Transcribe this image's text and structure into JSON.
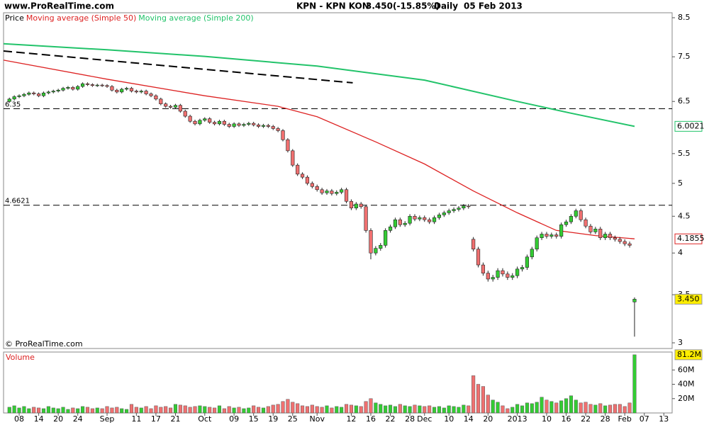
{
  "chart_data": {
    "type": "candlestick",
    "site": "www.ProRealTime.com",
    "symbol": "KPN - KPN KON",
    "last": "3.450",
    "change": "(-15.85%)",
    "period": "Daily",
    "date": "05 Feb 2013",
    "copyright": "© ProRealTime.com",
    "price_label": "Price",
    "log_scale": true,
    "xlim": [
      -1.2,
      135.7
    ],
    "ylim": [
      2.946,
      8.636
    ],
    "yticks": [
      8.5,
      7.5,
      6.5,
      5.5,
      5,
      4.5,
      4,
      3.5,
      3
    ],
    "xticks": [
      {
        "value": 2,
        "label": "08"
      },
      {
        "value": 6,
        "label": "14"
      },
      {
        "value": 10,
        "label": "20"
      },
      {
        "value": 14,
        "label": "24"
      },
      {
        "value": 20,
        "label": "Sep"
      },
      {
        "value": 26,
        "label": "11"
      },
      {
        "value": 30,
        "label": "17"
      },
      {
        "value": 34,
        "label": "21"
      },
      {
        "value": 40,
        "label": "Oct"
      },
      {
        "value": 46,
        "label": "09"
      },
      {
        "value": 50,
        "label": "15"
      },
      {
        "value": 54,
        "label": "19"
      },
      {
        "value": 58,
        "label": "25"
      },
      {
        "value": 63,
        "label": "Nov"
      },
      {
        "value": 70,
        "label": "12"
      },
      {
        "value": 74,
        "label": "16"
      },
      {
        "value": 78,
        "label": "22"
      },
      {
        "value": 82,
        "label": "28"
      },
      {
        "value": 85,
        "label": "Dec"
      },
      {
        "value": 90,
        "label": "10"
      },
      {
        "value": 94,
        "label": "14"
      },
      {
        "value": 98,
        "label": "20"
      },
      {
        "value": 104,
        "label": "2013"
      },
      {
        "value": 110,
        "label": "10"
      },
      {
        "value": 114,
        "label": "16"
      },
      {
        "value": 118,
        "label": "22"
      },
      {
        "value": 122,
        "label": "28"
      },
      {
        "value": 126,
        "label": "Feb"
      },
      {
        "value": 130,
        "label": "07"
      },
      {
        "value": 134,
        "label": "13"
      }
    ],
    "candles": {
      "up_color": "#33cc33",
      "down_color": "#f07070",
      "last_label": "3.450",
      "last_label_color": "#ffee00",
      "open": [
        6.5,
        6.55,
        6.6,
        6.62,
        6.65,
        6.68,
        6.66,
        6.62,
        6.68,
        6.7,
        6.72,
        6.74,
        6.78,
        6.8,
        6.76,
        6.82,
        6.88,
        6.86,
        6.84,
        6.85,
        6.84,
        6.82,
        6.74,
        6.7,
        6.76,
        6.78,
        6.72,
        6.7,
        6.72,
        6.66,
        6.62,
        6.55,
        6.45,
        6.4,
        6.38,
        6.42,
        6.3,
        6.2,
        6.1,
        6.05,
        6.12,
        6.15,
        6.08,
        6.05,
        6.1,
        6.04,
        6.0,
        6.05,
        6.02,
        6.04,
        6.06,
        6.03,
        6.0,
        6.02,
        6.0,
        5.96,
        5.92,
        5.75,
        5.55,
        5.3,
        5.15,
        5.1,
        5.0,
        4.95,
        4.9,
        4.85,
        4.88,
        4.84,
        4.86,
        4.9,
        4.72,
        4.62,
        4.68,
        4.64,
        4.3,
        4.0,
        4.06,
        4.1,
        4.3,
        4.35,
        4.45,
        4.38,
        4.4,
        4.5,
        4.46,
        4.48,
        4.45,
        4.42,
        4.48,
        4.52,
        4.55,
        4.58,
        4.6,
        4.62,
        4.65,
        4.18,
        4.05,
        3.85,
        3.75,
        3.68,
        3.7,
        3.78,
        3.74,
        3.7,
        3.72,
        3.8,
        3.82,
        3.95,
        4.05,
        4.2,
        4.25,
        4.22,
        4.24,
        4.22,
        4.38,
        4.42,
        4.5,
        4.58,
        4.45,
        4.36,
        4.28,
        4.32,
        4.2,
        4.25,
        4.2,
        4.18,
        4.15,
        4.12,
        3.42
      ],
      "high": [
        6.58,
        6.63,
        6.65,
        6.68,
        6.71,
        6.71,
        6.69,
        6.71,
        6.73,
        6.75,
        6.77,
        6.81,
        6.83,
        6.83,
        6.85,
        6.91,
        6.91,
        6.89,
        6.88,
        6.88,
        6.87,
        6.85,
        6.77,
        6.79,
        6.81,
        6.81,
        6.75,
        6.75,
        6.75,
        6.69,
        6.65,
        6.58,
        6.48,
        6.43,
        6.45,
        6.45,
        6.33,
        6.23,
        6.13,
        6.15,
        6.18,
        6.18,
        6.11,
        6.13,
        6.13,
        6.07,
        6.08,
        6.08,
        6.07,
        6.09,
        6.09,
        6.06,
        6.05,
        6.05,
        6.03,
        5.99,
        5.95,
        5.78,
        5.58,
        5.33,
        5.18,
        5.13,
        5.03,
        4.98,
        4.93,
        4.91,
        4.91,
        4.89,
        4.93,
        4.93,
        4.75,
        4.71,
        4.71,
        4.67,
        4.33,
        4.09,
        4.13,
        4.33,
        4.38,
        4.48,
        4.48,
        4.43,
        4.53,
        4.53,
        4.51,
        4.51,
        4.48,
        4.51,
        4.55,
        4.58,
        4.61,
        4.63,
        4.65,
        4.68,
        4.68,
        4.21,
        4.08,
        3.88,
        3.78,
        3.73,
        3.81,
        3.81,
        3.77,
        3.75,
        3.83,
        3.85,
        3.98,
        4.08,
        4.23,
        4.28,
        4.28,
        4.27,
        4.27,
        4.41,
        4.45,
        4.53,
        4.61,
        4.61,
        4.48,
        4.39,
        4.35,
        4.35,
        4.28,
        4.28,
        4.23,
        4.21,
        4.18,
        4.15,
        3.47
      ],
      "low": [
        6.47,
        6.52,
        6.57,
        6.59,
        6.62,
        6.63,
        6.59,
        6.59,
        6.65,
        6.67,
        6.69,
        6.71,
        6.75,
        6.73,
        6.73,
        6.79,
        6.83,
        6.81,
        6.81,
        6.81,
        6.79,
        6.71,
        6.67,
        6.67,
        6.73,
        6.69,
        6.67,
        6.67,
        6.63,
        6.59,
        6.52,
        6.42,
        6.37,
        6.35,
        6.35,
        6.27,
        6.17,
        6.07,
        6.02,
        6.02,
        6.09,
        6.05,
        6.02,
        6.02,
        6.01,
        5.97,
        5.97,
        5.99,
        5.99,
        6.01,
        6.0,
        5.97,
        5.97,
        5.97,
        5.93,
        5.89,
        5.72,
        5.52,
        5.27,
        5.12,
        5.07,
        4.97,
        4.92,
        4.87,
        4.82,
        4.82,
        4.81,
        4.81,
        4.83,
        4.69,
        4.59,
        4.59,
        4.61,
        4.27,
        3.92,
        3.97,
        4.03,
        4.07,
        4.27,
        4.32,
        4.35,
        4.35,
        4.37,
        4.43,
        4.43,
        4.42,
        4.39,
        4.39,
        4.45,
        4.49,
        4.52,
        4.55,
        4.57,
        4.59,
        4.61,
        4.02,
        3.82,
        3.72,
        3.65,
        3.65,
        3.67,
        3.71,
        3.67,
        3.67,
        3.69,
        3.77,
        3.79,
        3.92,
        4.02,
        4.17,
        4.19,
        4.19,
        4.19,
        4.19,
        4.35,
        4.39,
        4.47,
        4.42,
        4.33,
        4.25,
        4.25,
        4.17,
        4.17,
        4.17,
        4.15,
        4.12,
        4.09,
        4.07,
        3.06
      ],
      "close": [
        6.55,
        6.6,
        6.62,
        6.65,
        6.68,
        6.66,
        6.62,
        6.68,
        6.7,
        6.72,
        6.74,
        6.78,
        6.8,
        6.76,
        6.82,
        6.88,
        6.86,
        6.84,
        6.85,
        6.84,
        6.82,
        6.74,
        6.7,
        6.76,
        6.78,
        6.72,
        6.7,
        6.72,
        6.66,
        6.62,
        6.55,
        6.45,
        6.4,
        6.38,
        6.42,
        6.3,
        6.2,
        6.1,
        6.05,
        6.12,
        6.15,
        6.08,
        6.05,
        6.1,
        6.04,
        6.0,
        6.05,
        6.02,
        6.04,
        6.06,
        6.03,
        6.0,
        6.02,
        6.0,
        5.96,
        5.92,
        5.75,
        5.55,
        5.3,
        5.15,
        5.1,
        5.0,
        4.95,
        4.9,
        4.85,
        4.88,
        4.84,
        4.86,
        4.9,
        4.72,
        4.62,
        4.68,
        4.64,
        4.3,
        4.0,
        4.06,
        4.1,
        4.3,
        4.35,
        4.45,
        4.38,
        4.4,
        4.5,
        4.46,
        4.48,
        4.45,
        4.42,
        4.48,
        4.52,
        4.55,
        4.58,
        4.6,
        4.62,
        4.65,
        4.64,
        4.05,
        3.85,
        3.75,
        3.68,
        3.7,
        3.78,
        3.74,
        3.7,
        3.72,
        3.8,
        3.82,
        3.95,
        4.05,
        4.2,
        4.25,
        4.22,
        4.24,
        4.22,
        4.38,
        4.42,
        4.5,
        4.58,
        4.45,
        4.36,
        4.28,
        4.32,
        4.2,
        4.25,
        4.2,
        4.18,
        4.15,
        4.12,
        4.1,
        3.45
      ]
    },
    "series": [
      {
        "name": "Moving average (Simple 50)",
        "color": "#dd2222",
        "x": [
          -1.2,
          20,
          40,
          55,
          63,
          75,
          85,
          95,
          104,
          112,
          120,
          128
        ],
        "values": [
          7.42,
          6.98,
          6.62,
          6.4,
          6.19,
          5.71,
          5.32,
          4.88,
          4.55,
          4.3,
          4.23,
          4.1855
        ]
      },
      {
        "name": "Moving average (Simple 200)",
        "color": "#22c36a",
        "x": [
          -1.2,
          20,
          40,
          63,
          85,
          104,
          115,
          128
        ],
        "values": [
          7.82,
          7.67,
          7.51,
          7.28,
          6.96,
          6.5,
          6.26,
          6.0021
        ]
      }
    ],
    "trendline": {
      "color": "#000000",
      "x": [
        -1.2,
        70.3
      ],
      "values": [
        7.64,
        6.9
      ]
    },
    "hlines": [
      6.35,
      4.6621
    ],
    "volume": {
      "name": "Volume",
      "ylim": [
        0,
        85
      ],
      "yticks": [
        {
          "value": 20,
          "label": "20M"
        },
        {
          "value": 40,
          "label": "40M"
        },
        {
          "value": 60,
          "label": "60M"
        }
      ],
      "last_label": "81.2M",
      "values": [
        8,
        10,
        7,
        9,
        6,
        8,
        7,
        6,
        9,
        7,
        6,
        8,
        5,
        7,
        6,
        9,
        8,
        6,
        7,
        6,
        9,
        7,
        8,
        6,
        5,
        12,
        8,
        7,
        9,
        6,
        10,
        8,
        9,
        7,
        12,
        11,
        10,
        8,
        9,
        10,
        9,
        8,
        7,
        10,
        6,
        9,
        7,
        8,
        6,
        7,
        10,
        8,
        7,
        9,
        11,
        12,
        16,
        19,
        15,
        13,
        10,
        9,
        11,
        9,
        8,
        10,
        7,
        9,
        8,
        12,
        11,
        10,
        9,
        16,
        20,
        14,
        12,
        10,
        11,
        9,
        12,
        10,
        9,
        11,
        10,
        9,
        10,
        8,
        9,
        7,
        10,
        9,
        8,
        11,
        10,
        52,
        40,
        37,
        25,
        18,
        15,
        10,
        6,
        8,
        12,
        10,
        14,
        13,
        15,
        22,
        18,
        16,
        14,
        17,
        20,
        24,
        18,
        14,
        15,
        12,
        11,
        13,
        10,
        11,
        12,
        12,
        9,
        14,
        81.2
      ]
    }
  }
}
